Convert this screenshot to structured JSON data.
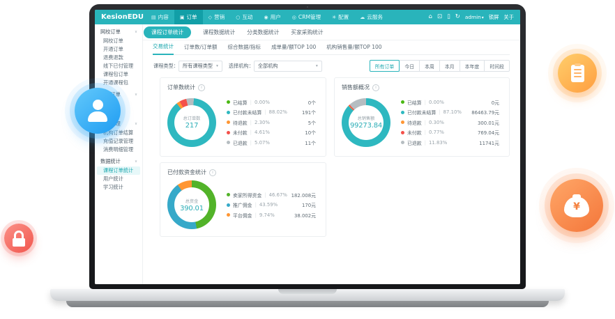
{
  "colors": {
    "accent": "#29b4bb",
    "navbar": "#29b4bb",
    "active_menu": "#12a0a7",
    "green": "#49b812",
    "teal": "#2eb8c0",
    "orange": "#ff9633",
    "red": "#f4504a",
    "gray": "#b6bdc1"
  },
  "icon_glyphs": {
    "content-icon": "▤",
    "order-icon": "▣",
    "marketing-icon": "◇",
    "interact-icon": "○",
    "user-icon": "◉",
    "crm-icon": "◎",
    "settings-icon": "✳",
    "cloud-icon": "☁",
    "home-icon": "⌂",
    "monitor-icon": "⊡",
    "phone-icon": "▯",
    "refresh-icon": "↻",
    "chevron-down-icon": "▾",
    "collapse-icon": "∨",
    "info-icon": "i",
    "yen-icon": "¥"
  },
  "app": {
    "navbar": {
      "logo": "KesionEDU",
      "items": [
        {
          "icon": "content-icon",
          "label": "内容"
        },
        {
          "icon": "order-icon",
          "label": "订单",
          "active": true
        },
        {
          "icon": "marketing-icon",
          "label": "营销"
        },
        {
          "icon": "interact-icon",
          "label": "互动"
        },
        {
          "icon": "user-icon",
          "label": "用户"
        },
        {
          "icon": "crm-icon",
          "label": "CRM管理"
        },
        {
          "icon": "settings-icon",
          "label": "配置"
        },
        {
          "icon": "cloud-icon",
          "label": "云服务"
        }
      ],
      "right": {
        "user": "admin",
        "links": [
          "锁屏",
          "关于"
        ]
      }
    },
    "subnav": {
      "tabs": [
        "课程订单统计",
        "课程数据统计",
        "分类数据统计",
        "买家采购统计"
      ],
      "active_index": 0
    },
    "sidebar": {
      "sections": [
        {
          "label": "网校订单",
          "items": [
            "网校订单",
            "开通订单",
            "退费退款",
            "线下已付管理",
            "课程包订单",
            "开通课程包"
          ]
        },
        {
          "label": "机构订单",
          "items": [
            "",
            ""
          ]
        },
        {
          "label": "财务管理",
          "items": [
            "机构订单结算",
            "充值记录管理",
            "消费明细管理"
          ]
        },
        {
          "label": "数据统计",
          "items": [
            "课程订单统计",
            "用户统计",
            "学习统计"
          ],
          "active_index": 0
        }
      ]
    },
    "panel": {
      "tabs": [
        "交易统计",
        "订单数/订单额",
        "综合数据/指标",
        "成单量/额TOP 100",
        "机构销售量/额TOP 100"
      ],
      "active_index": 0,
      "filters": [
        {
          "label": "课程类型：",
          "value": "所有课程类型"
        },
        {
          "label": "选择机构：",
          "value": "全部机构"
        }
      ],
      "range_buttons": [
        "所有订单",
        "今日",
        "本周",
        "本月",
        "本年度",
        "时间段"
      ],
      "range_active_index": 0
    }
  },
  "chart_data": [
    {
      "type": "pie",
      "title": "订单数统计",
      "center_label": "总订单数",
      "center_value": "217",
      "from_deg": -38,
      "draw_order": [
        2,
        3,
        4,
        1
      ],
      "legend": [
        {
          "label": "已结算",
          "pct": 0.0,
          "value": "0个",
          "color": "#49b812"
        },
        {
          "label": "已付款未结算",
          "pct": 88.02,
          "value": "191个",
          "color": "#2eb8c0"
        },
        {
          "label": "待退款",
          "pct": 2.3,
          "value": "5个",
          "color": "#ff9633"
        },
        {
          "label": "未付款",
          "pct": 4.61,
          "value": "10个",
          "color": "#f4504a"
        },
        {
          "label": "已退款",
          "pct": 5.07,
          "value": "11个",
          "color": "#b6bdc1"
        }
      ]
    },
    {
      "type": "pie",
      "title": "销售额概况",
      "center_label": "总销售额",
      "center_value": "99273.84",
      "from_deg": 0,
      "draw_order": [
        1,
        2,
        3,
        4
      ],
      "legend": [
        {
          "label": "已结算",
          "pct": 0.0,
          "value": "0元",
          "color": "#49b812"
        },
        {
          "label": "已付款未结算",
          "pct": 87.1,
          "value": "86463.79元",
          "color": "#2eb8c0"
        },
        {
          "label": "待退款",
          "pct": 0.3,
          "value": "300.01元",
          "color": "#ff9633"
        },
        {
          "label": "未付款",
          "pct": 0.77,
          "value": "769.04元",
          "color": "#f4504a"
        },
        {
          "label": "已退款",
          "pct": 11.83,
          "value": "11741元",
          "color": "#b6bdc1"
        }
      ]
    },
    {
      "type": "pie",
      "title": "已付款资金统计",
      "center_label": "总资金",
      "center_value": "390.01",
      "from_deg": 0,
      "draw_order": [
        0,
        1,
        2
      ],
      "legend": [
        {
          "label": "卖家所得资金",
          "pct": 46.67,
          "value": "182.008元",
          "color": "#52b329"
        },
        {
          "label": "推广佣金",
          "pct": 43.59,
          "value": "170元",
          "color": "#36a9c9"
        },
        {
          "label": "平台佣金",
          "pct": 9.74,
          "value": "38.002元",
          "color": "#ff9633"
        }
      ]
    }
  ]
}
